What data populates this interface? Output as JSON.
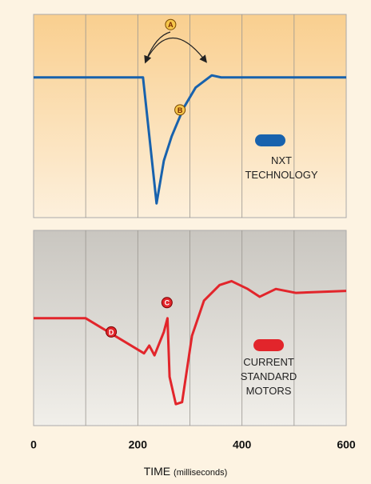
{
  "chart_data": [
    {
      "type": "line",
      "xlim": [
        0,
        600
      ],
      "ylim": [
        0,
        100
      ],
      "xgrid": [
        100,
        200,
        300,
        400,
        500
      ],
      "x": [
        0,
        210,
        236,
        250,
        265,
        288,
        311,
        342,
        360,
        600
      ],
      "series": [
        {
          "name": "NXT TECHNOLOGY",
          "color": "#1862ad",
          "values": [
            69,
            69,
            7,
            28,
            40,
            54,
            64,
            70,
            69,
            69
          ]
        }
      ],
      "annotations": [
        {
          "label": "A",
          "x": 263,
          "y": 95
        },
        {
          "label": "B",
          "x": 281,
          "y": 53
        }
      ]
    },
    {
      "type": "line",
      "xlim": [
        0,
        600
      ],
      "ylim": [
        0,
        100
      ],
      "xgrid": [
        100,
        200,
        300,
        400,
        500
      ],
      "x": [
        0,
        100,
        212,
        222,
        232,
        250,
        257,
        261,
        273,
        285,
        304,
        327,
        357,
        380,
        411,
        434,
        465,
        503,
        600
      ],
      "series": [
        {
          "name": "CURRENT STANDARD MOTORS",
          "color": "#e2252b",
          "values": [
            55,
            55,
            37,
            41,
            36,
            48,
            55,
            25,
            11,
            12,
            46,
            64,
            72,
            74,
            70,
            66,
            70,
            68,
            69
          ]
        }
      ],
      "annotations": [
        {
          "label": "C",
          "x": 256,
          "y": 63
        },
        {
          "label": "D",
          "x": 149,
          "y": 48
        }
      ],
      "xticks": [
        0,
        200,
        400,
        600
      ],
      "xlabel": "TIME",
      "xlabel_unit": "(milliseconds)"
    }
  ]
}
